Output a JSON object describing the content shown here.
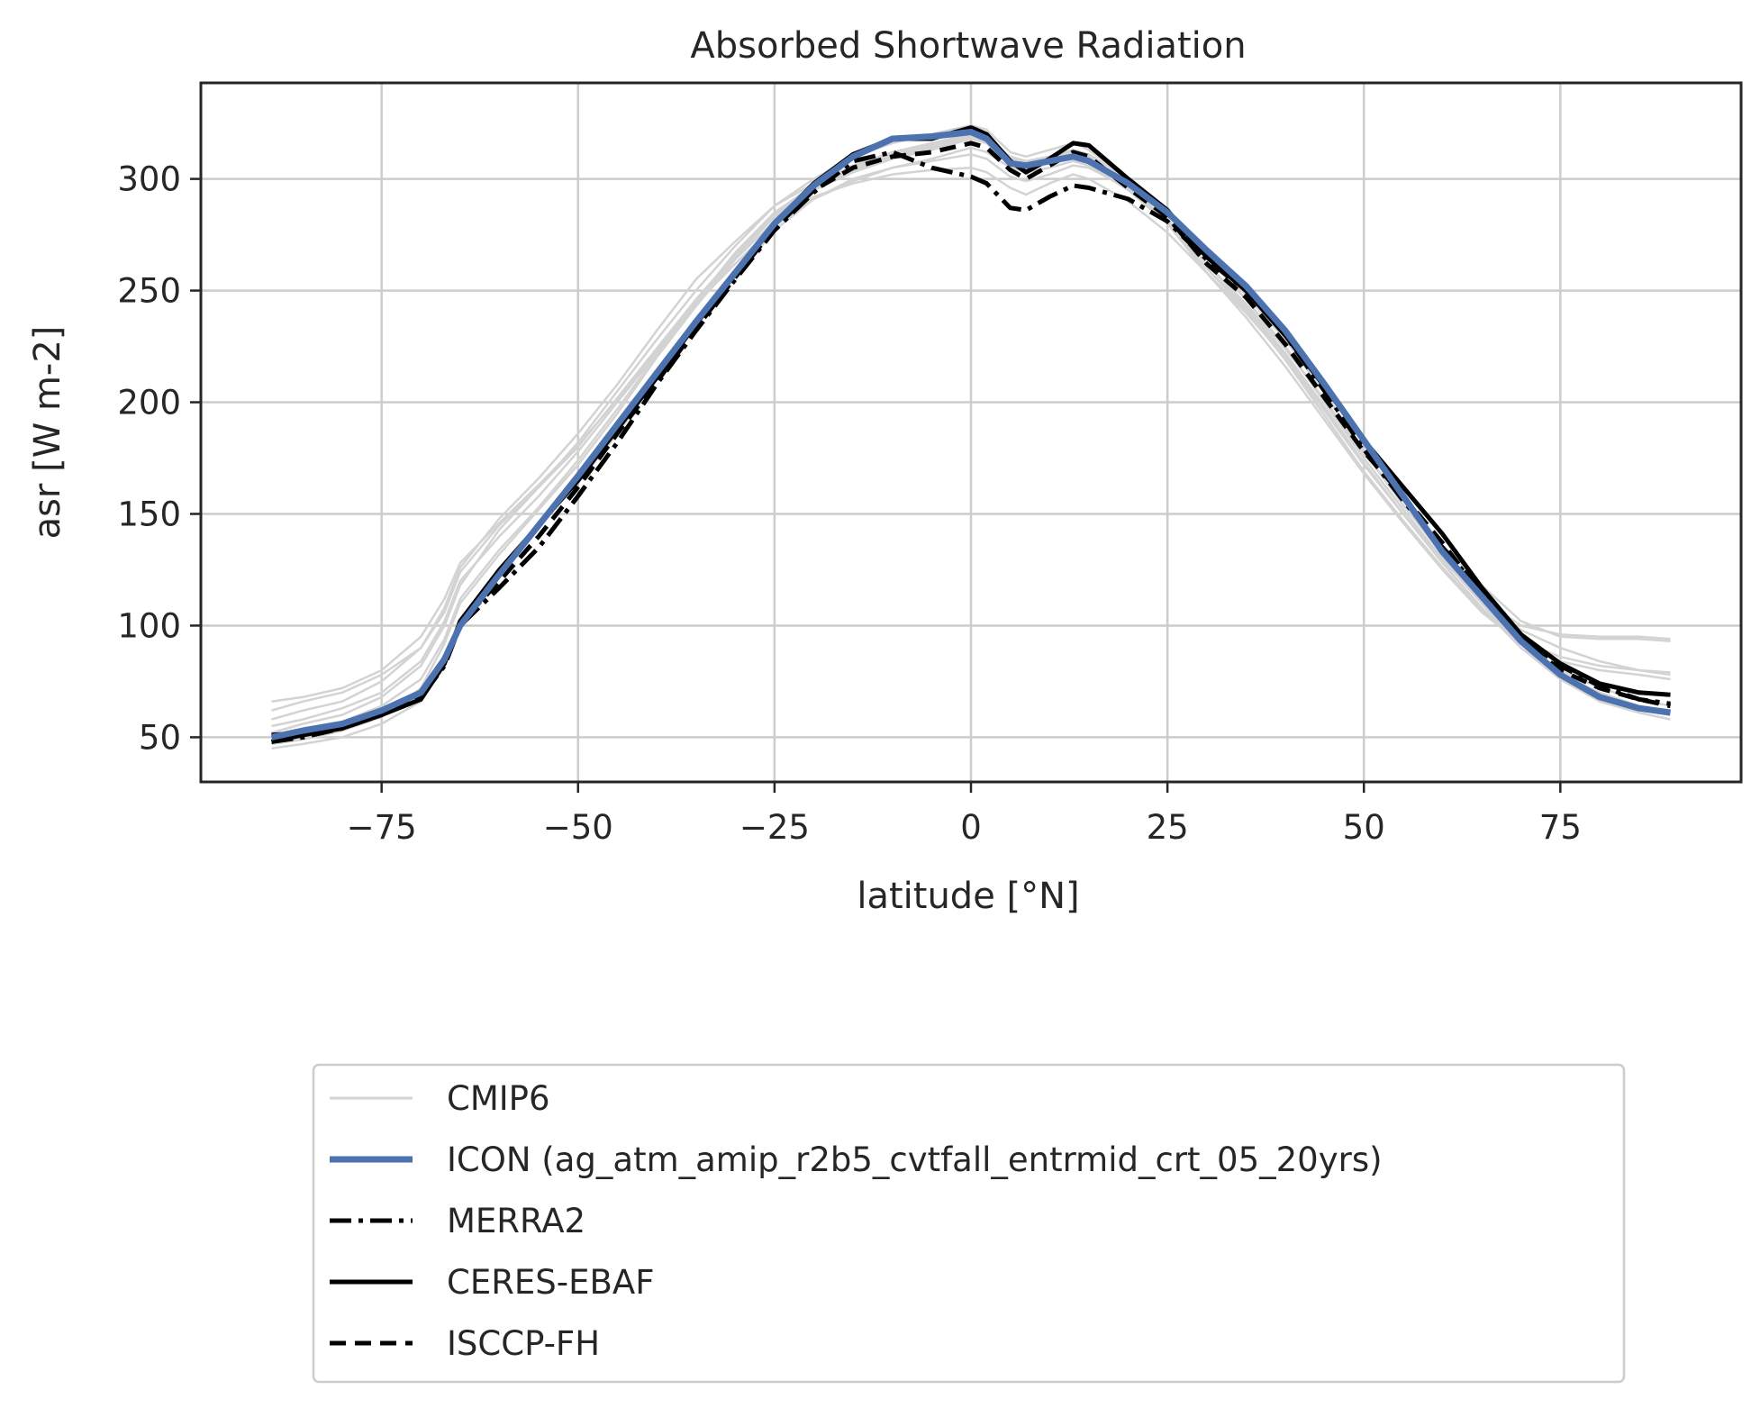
{
  "chart_data": {
    "type": "line",
    "title": "Absorbed Shortwave Radiation",
    "xlabel": "latitude [°N]",
    "ylabel": "asr [W m-2]",
    "xlim": [
      -98,
      98
    ],
    "ylim": [
      30,
      343
    ],
    "xticks": [
      -75,
      -50,
      -25,
      0,
      25,
      50,
      75
    ],
    "yticks": [
      50,
      100,
      150,
      200,
      250,
      300
    ],
    "xtick_labels": [
      "−75",
      "−50",
      "−25",
      "0",
      "25",
      "50",
      "75"
    ],
    "ytick_labels": [
      "50",
      "100",
      "150",
      "200",
      "250",
      "300"
    ],
    "grid": true,
    "legend_position": "below",
    "x": [
      -89,
      -85,
      -80,
      -75,
      -70,
      -67,
      -65,
      -60,
      -55,
      -50,
      -45,
      -40,
      -35,
      -30,
      -25,
      -20,
      -15,
      -10,
      -5,
      0,
      2,
      5,
      7,
      10,
      13,
      15,
      20,
      25,
      30,
      35,
      40,
      45,
      50,
      55,
      60,
      65,
      70,
      75,
      80,
      85,
      89
    ],
    "series": [
      {
        "name": "ICON (ag_atm_amip_r2b5_cvtfall_entrmid_crt_05_20yrs)",
        "color": "#4c72b0",
        "style": "solid",
        "values": [
          50,
          53,
          56,
          62,
          70,
          85,
          100,
          123,
          145,
          167,
          190,
          213,
          236,
          258,
          280,
          297,
          310,
          318,
          319,
          321,
          318,
          307,
          306,
          308,
          310,
          308,
          298,
          285,
          268,
          252,
          232,
          208,
          183,
          158,
          133,
          113,
          93,
          78,
          68,
          63,
          61
        ]
      },
      {
        "name": "MERRA2",
        "color": "#000000",
        "style": "dashdot",
        "values": [
          48,
          50,
          54,
          60,
          68,
          82,
          100,
          117,
          135,
          158,
          182,
          208,
          232,
          255,
          277,
          294,
          308,
          312,
          305,
          301,
          298,
          287,
          286,
          292,
          297,
          296,
          291,
          281,
          264,
          250,
          230,
          205,
          179,
          156,
          135,
          115,
          95,
          82,
          73,
          67,
          65
        ]
      },
      {
        "name": "CERES-EBAF",
        "color": "#000000",
        "style": "solid",
        "values": [
          48,
          51,
          54,
          60,
          67,
          83,
          102,
          125,
          145,
          165,
          188,
          211,
          235,
          258,
          280,
          298,
          311,
          318,
          318,
          323,
          320,
          308,
          303,
          309,
          316,
          315,
          300,
          286,
          265,
          250,
          230,
          207,
          183,
          162,
          141,
          117,
          96,
          83,
          74,
          70,
          69
        ]
      },
      {
        "name": "ISCCP-FH",
        "color": "#000000",
        "style": "dashed",
        "values": [
          51,
          52,
          55,
          61,
          68,
          84,
          101,
          120,
          140,
          162,
          186,
          209,
          233,
          256,
          278,
          295,
          305,
          310,
          312,
          316,
          314,
          304,
          300,
          306,
          312,
          310,
          296,
          283,
          262,
          247,
          226,
          202,
          178,
          158,
          137,
          114,
          94,
          80,
          72,
          67,
          64
        ]
      }
    ],
    "cmip6": {
      "name": "CMIP6",
      "color": "#d3d3d3",
      "members": [
        [
          52,
          56,
          60,
          68,
          82,
          100,
          118,
          143,
          162,
          182,
          205,
          228,
          250,
          270,
          288,
          300,
          310,
          316,
          320,
          324,
          322,
          312,
          310,
          313,
          316,
          313,
          300,
          282,
          262,
          243,
          222,
          198,
          173,
          150,
          128,
          108,
          90,
          78,
          70,
          64,
          62
        ],
        [
          58,
          62,
          66,
          75,
          90,
          108,
          126,
          148,
          166,
          186,
          208,
          232,
          255,
          272,
          288,
          298,
          306,
          312,
          316,
          320,
          318,
          310,
          308,
          310,
          312,
          310,
          298,
          280,
          258,
          238,
          216,
          192,
          168,
          146,
          125,
          106,
          92,
          84,
          80,
          78,
          76
        ],
        [
          47,
          49,
          53,
          59,
          72,
          92,
          110,
          132,
          152,
          172,
          195,
          220,
          243,
          264,
          281,
          292,
          298,
          302,
          304,
          305,
          303,
          296,
          293,
          298,
          302,
          300,
          290,
          276,
          258,
          240,
          220,
          196,
          172,
          150,
          130,
          112,
          98,
          90,
          84,
          80,
          78
        ],
        [
          62,
          66,
          70,
          78,
          90,
          106,
          124,
          145,
          162,
          180,
          202,
          224,
          246,
          266,
          284,
          296,
          304,
          310,
          314,
          318,
          316,
          306,
          304,
          307,
          310,
          307,
          296,
          281,
          262,
          244,
          224,
          201,
          177,
          156,
          136,
          118,
          102,
          95,
          94,
          94,
          93
        ],
        [
          45,
          47,
          50,
          56,
          66,
          84,
          102,
          124,
          145,
          164,
          186,
          210,
          234,
          256,
          277,
          291,
          300,
          305,
          308,
          311,
          309,
          301,
          299,
          302,
          306,
          305,
          296,
          284,
          266,
          248,
          228,
          204,
          178,
          154,
          132,
          110,
          90,
          76,
          66,
          61,
          58
        ],
        [
          55,
          58,
          63,
          70,
          84,
          102,
          120,
          140,
          158,
          178,
          200,
          222,
          245,
          265,
          283,
          295,
          303,
          309,
          313,
          318,
          317,
          309,
          307,
          309,
          311,
          309,
          297,
          281,
          260,
          241,
          219,
          194,
          169,
          147,
          126,
          107,
          93,
          86,
          82,
          80,
          79
        ],
        [
          50,
          53,
          57,
          64,
          76,
          94,
          112,
          134,
          153,
          174,
          197,
          221,
          245,
          267,
          285,
          297,
          305,
          311,
          315,
          319,
          318,
          309,
          307,
          310,
          313,
          311,
          300,
          284,
          265,
          246,
          225,
          200,
          175,
          152,
          130,
          110,
          92,
          80,
          72,
          67,
          64
        ],
        [
          66,
          68,
          72,
          80,
          95,
          112,
          128,
          146,
          163,
          181,
          201,
          223,
          244,
          262,
          279,
          291,
          299,
          305,
          309,
          314,
          312,
          305,
          303,
          305,
          308,
          306,
          295,
          280,
          260,
          242,
          221,
          197,
          172,
          150,
          129,
          112,
          100,
          96,
          95,
          95,
          94
        ]
      ]
    }
  }
}
